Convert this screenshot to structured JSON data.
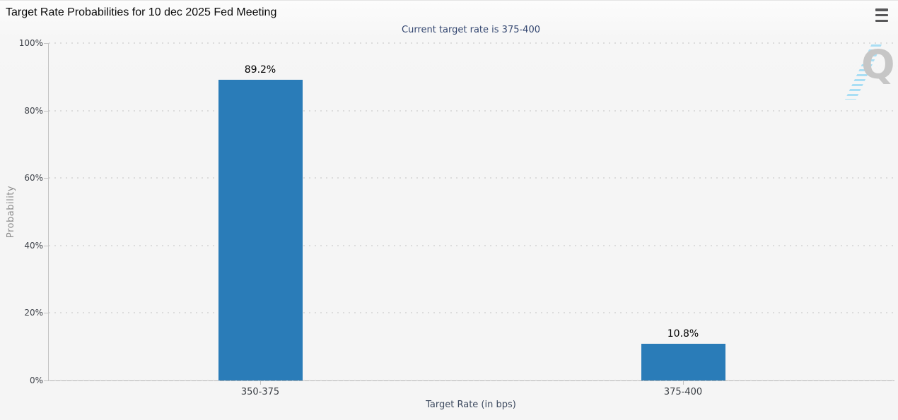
{
  "header": {
    "title": "Target Rate Probabilities for 10 dec 2025 Fed Meeting"
  },
  "icons": {
    "menu": "hamburger-icon"
  },
  "watermark": {
    "letter": "Q"
  },
  "chart_data": {
    "type": "bar",
    "title": "Target Rate Probabilities for 10 dec 2025 Fed Meeting",
    "subtitle": "Current target rate is 375-400",
    "categories": [
      "350-375",
      "375-400"
    ],
    "values": [
      89.2,
      10.8
    ],
    "value_labels": [
      "89.2%",
      "10.8%"
    ],
    "xlabel": "Target Rate (in bps)",
    "ylabel": "Probability",
    "ylim": [
      0,
      100
    ],
    "ytick_labels": [
      "0%",
      "20%",
      "40%",
      "60%",
      "80%",
      "100%"
    ],
    "grid": true,
    "legend": "none",
    "bar_color": "#2a7cb8"
  },
  "colors": {
    "bar": "#2a7cb8",
    "subtitle_text": "#334670",
    "tick_label": "#3f434a",
    "axis_title": "#3d4a5f",
    "grid_line": "#dcdcdc",
    "axis_line": "#bdbdbd",
    "watermark_gray": "#c6c6c6",
    "watermark_blue": "#a9def4"
  }
}
